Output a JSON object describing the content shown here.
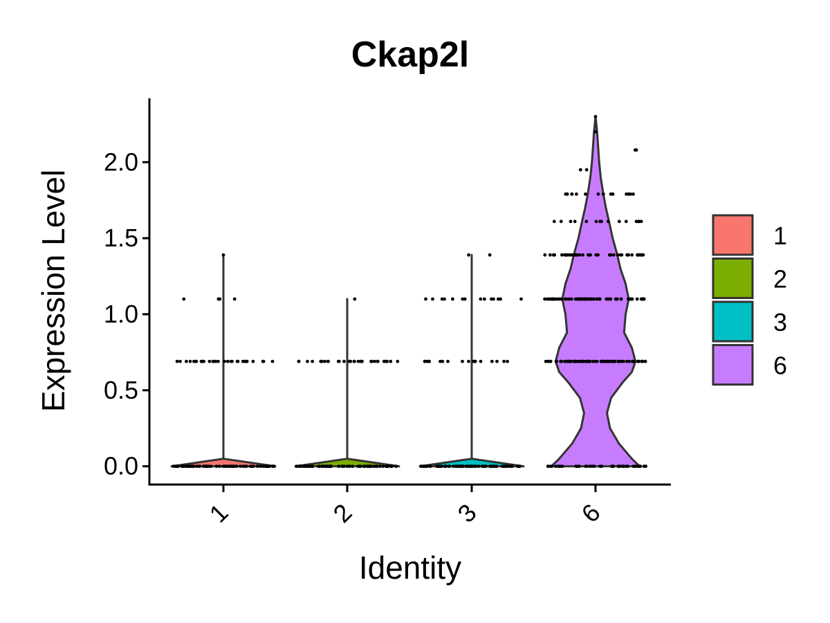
{
  "chart_data": {
    "type": "violin",
    "title": "Ckap2l",
    "xlabel": "Identity",
    "ylabel": "Expression Level",
    "ylim": [
      -0.12,
      2.42
    ],
    "yticks": [
      0.0,
      0.5,
      1.0,
      1.5,
      2.0
    ],
    "ytick_labels": [
      "0.0",
      "0.5",
      "1.0",
      "1.5",
      "2.0"
    ],
    "categories": [
      "1",
      "2",
      "3",
      "6"
    ],
    "series": [
      {
        "name": "1",
        "color": "#F8766D",
        "max": 1.39,
        "density": [
          [
            0.0,
            1.0
          ],
          [
            0.05,
            0.0
          ],
          [
            1.39,
            0.0
          ]
        ],
        "points": [
          {
            "y": 0.0,
            "n": 70,
            "spread": 0.41
          },
          {
            "y": 0.69,
            "n": 30,
            "spread": 0.41
          },
          {
            "y": 1.1,
            "n": 4,
            "spread": 0.33
          },
          {
            "y": 1.39,
            "n": 1,
            "spread": 0.0
          }
        ]
      },
      {
        "name": "2",
        "color": "#7CAE00",
        "max": 1.1,
        "density": [
          [
            0.0,
            1.0
          ],
          [
            0.05,
            0.0
          ],
          [
            1.1,
            0.0
          ]
        ],
        "points": [
          {
            "y": 0.0,
            "n": 70,
            "spread": 0.41
          },
          {
            "y": 0.69,
            "n": 32,
            "spread": 0.41
          },
          {
            "y": 1.1,
            "n": 1,
            "spread": 0.06
          }
        ]
      },
      {
        "name": "3",
        "color": "#00BFC4",
        "max": 1.39,
        "density": [
          [
            0.0,
            1.0
          ],
          [
            0.05,
            0.0
          ],
          [
            1.39,
            0.0
          ]
        ],
        "points": [
          {
            "y": 0.0,
            "n": 70,
            "spread": 0.41
          },
          {
            "y": 0.69,
            "n": 18,
            "spread": 0.41
          },
          {
            "y": 1.1,
            "n": 14,
            "spread": 0.41
          },
          {
            "y": 1.39,
            "n": 2,
            "spread": 0.28
          }
        ]
      },
      {
        "name": "6",
        "color": "#C77CFF",
        "max": 2.3,
        "density": [
          [
            0.0,
            0.85
          ],
          [
            0.05,
            0.7
          ],
          [
            0.15,
            0.45
          ],
          [
            0.25,
            0.28
          ],
          [
            0.35,
            0.22
          ],
          [
            0.45,
            0.3
          ],
          [
            0.55,
            0.52
          ],
          [
            0.62,
            0.7
          ],
          [
            0.69,
            0.77
          ],
          [
            0.78,
            0.7
          ],
          [
            0.88,
            0.55
          ],
          [
            1.0,
            0.58
          ],
          [
            1.1,
            0.64
          ],
          [
            1.2,
            0.58
          ],
          [
            1.3,
            0.48
          ],
          [
            1.39,
            0.42
          ],
          [
            1.5,
            0.33
          ],
          [
            1.61,
            0.26
          ],
          [
            1.7,
            0.2
          ],
          [
            1.79,
            0.15
          ],
          [
            1.9,
            0.1
          ],
          [
            2.0,
            0.07
          ],
          [
            2.1,
            0.05
          ],
          [
            2.2,
            0.03
          ],
          [
            2.3,
            0.0
          ]
        ],
        "points": [
          {
            "y": 0.0,
            "n": 40,
            "spread": 0.41
          },
          {
            "y": 0.69,
            "n": 80,
            "spread": 0.41
          },
          {
            "y": 1.1,
            "n": 70,
            "spread": 0.41
          },
          {
            "y": 1.39,
            "n": 40,
            "spread": 0.41
          },
          {
            "y": 1.61,
            "n": 16,
            "spread": 0.41
          },
          {
            "y": 1.79,
            "n": 14,
            "spread": 0.36
          },
          {
            "y": 1.95,
            "n": 2,
            "spread": 0.15
          },
          {
            "y": 2.08,
            "n": 2,
            "spread": 0.38
          },
          {
            "y": 2.2,
            "n": 1,
            "spread": 0.0
          },
          {
            "y": 2.3,
            "n": 1,
            "spread": 0.0
          }
        ]
      }
    ],
    "legend": {
      "position": "right",
      "labels": [
        "1",
        "2",
        "3",
        "6"
      ]
    }
  }
}
